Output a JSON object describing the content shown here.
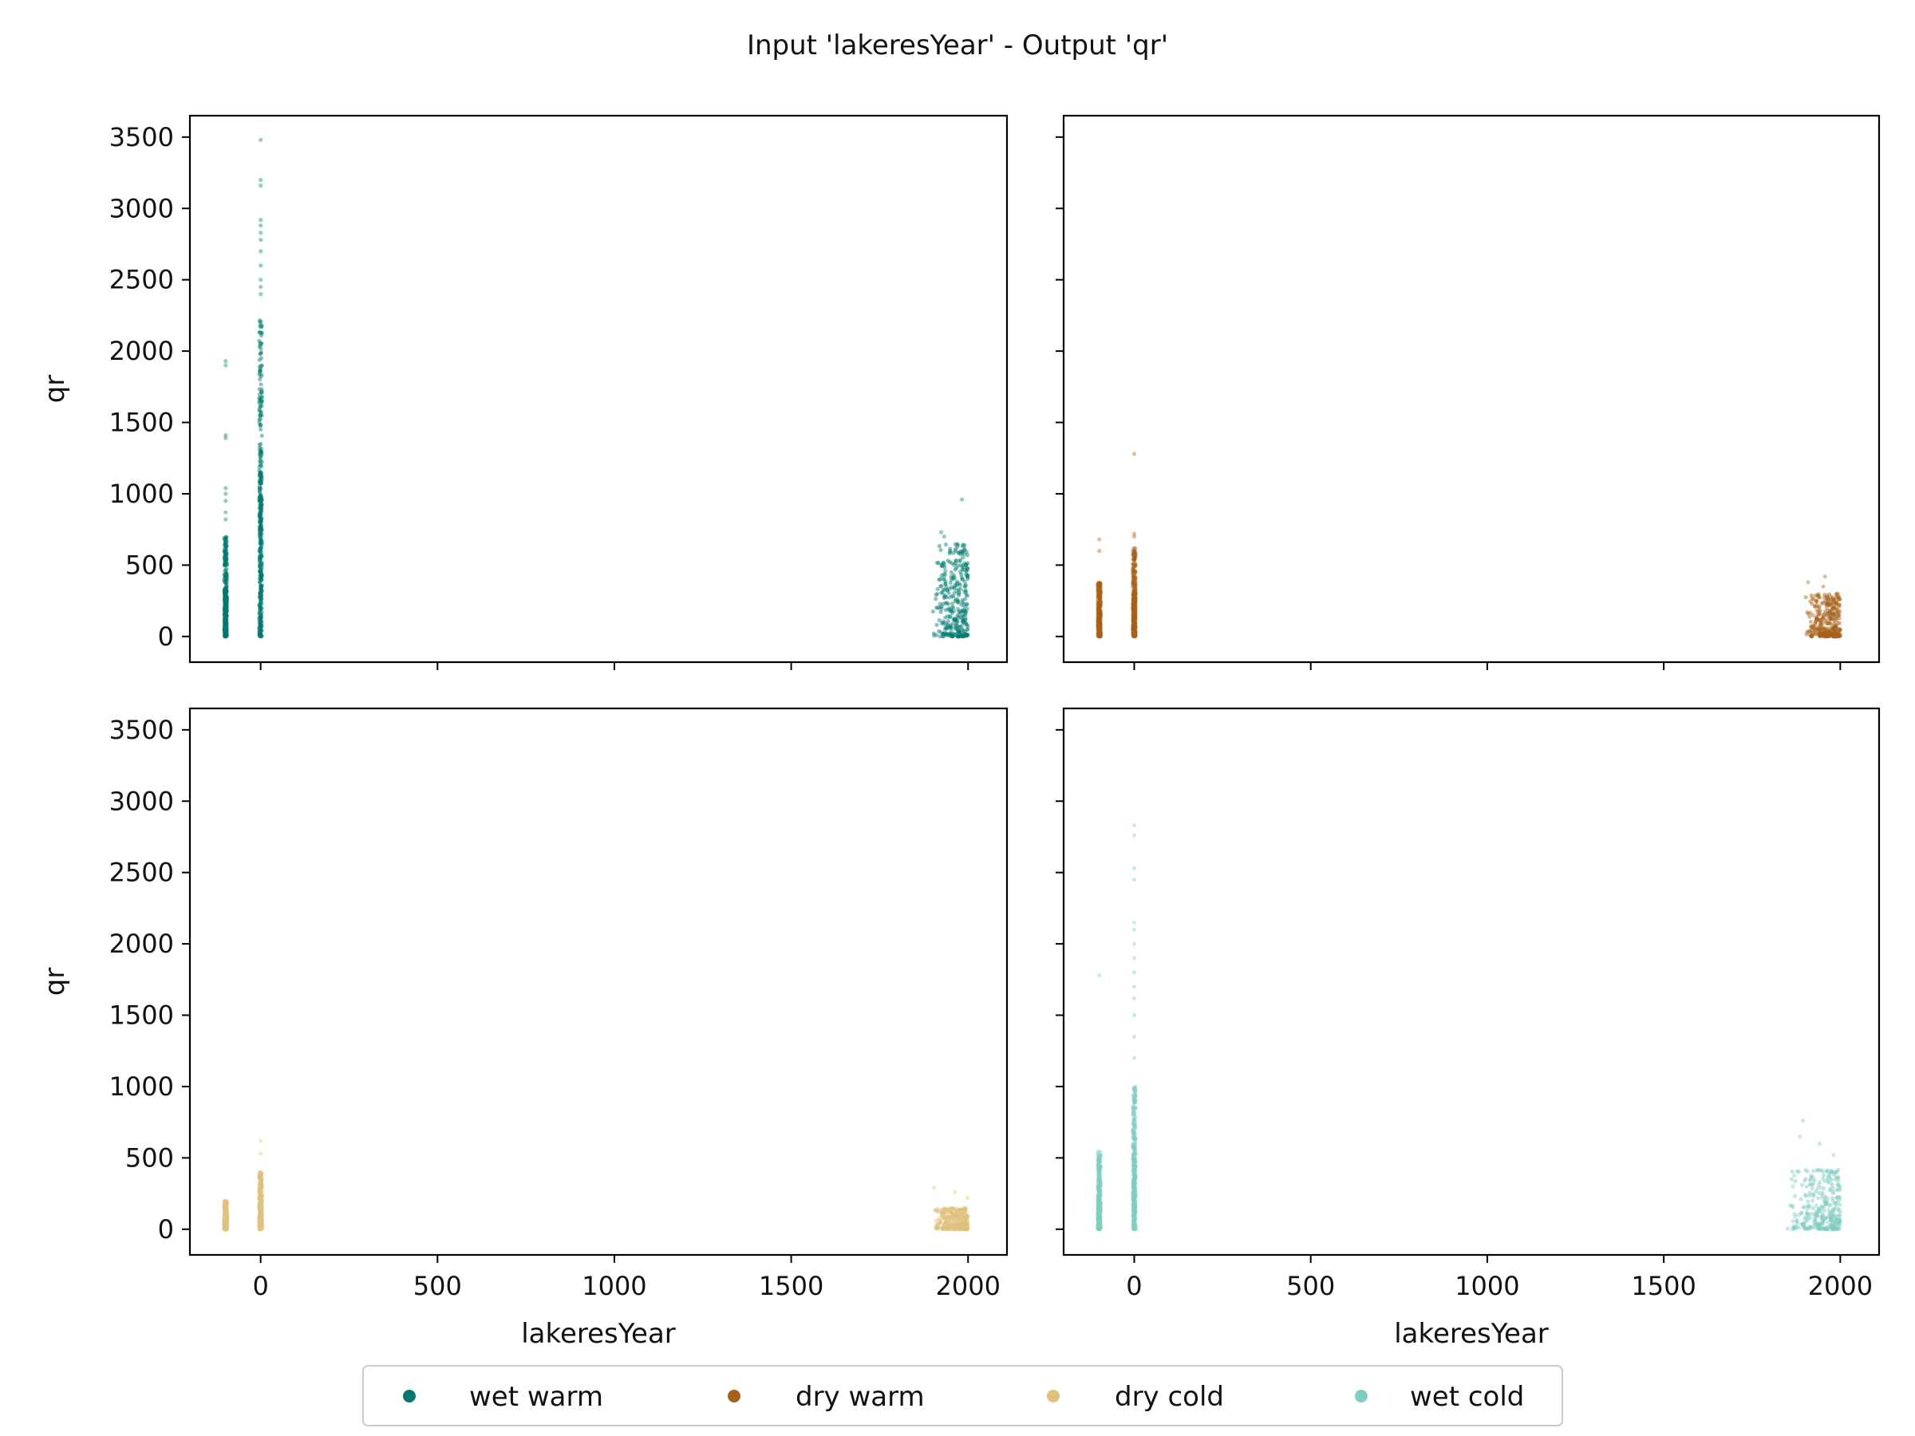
{
  "chart_data": {
    "type": "scatter",
    "title": "Input 'lakeresYear' - Output 'qr'",
    "xlabel": "lakeresYear",
    "ylabel": "qr",
    "xlim": [
      -200,
      2110
    ],
    "ylim": [
      -180,
      3650
    ],
    "xticks": [
      0,
      500,
      1000,
      1500,
      2000
    ],
    "yticks": [
      0,
      500,
      1000,
      1500,
      2000,
      2500,
      3000,
      3500
    ],
    "sharex": true,
    "sharey": true,
    "grid": false,
    "legend": {
      "position": "bottom-center",
      "entries": [
        "wet warm",
        "dry warm",
        "dry cold",
        "wet cold"
      ]
    },
    "series": [
      {
        "name": "wet warm",
        "color": "#01796f",
        "panel": "top-left",
        "clusters": [
          {
            "x": -99,
            "q_min": 0,
            "q_dense_max": 700,
            "outliers": [
              820,
              870,
              950,
              1000,
              1040,
              1390,
              1410,
              1900,
              1930
            ]
          },
          {
            "x": 0,
            "q_min": 0,
            "q_dense_max": 2300,
            "outliers": [
              2400,
              2450,
              2500,
              2600,
              2700,
              2780,
              2830,
              2880,
              2920,
              3160,
              3200,
              3480
            ]
          },
          {
            "x_min": 1900,
            "x_max": 2000,
            "q_min": 0,
            "q_dense_max": 650,
            "outliers": [
              700,
              730,
              960
            ]
          }
        ]
      },
      {
        "name": "dry warm",
        "color": "#a6611a",
        "panel": "top-right",
        "clusters": [
          {
            "x": -99,
            "q_min": 0,
            "q_dense_max": 380,
            "outliers": [
              600,
              680
            ]
          },
          {
            "x": 0,
            "q_min": 0,
            "q_dense_max": 620,
            "outliers": [
              700,
              720,
              1280
            ]
          },
          {
            "x_min": 1900,
            "x_max": 2000,
            "q_min": 0,
            "q_dense_max": 300,
            "outliers": [
              350,
              380,
              420
            ]
          }
        ]
      },
      {
        "name": "dry cold",
        "color": "#dfc27d",
        "panel": "bottom-left",
        "clusters": [
          {
            "x": -99,
            "q_min": 0,
            "q_dense_max": 200,
            "outliers": []
          },
          {
            "x": 0,
            "q_min": 0,
            "q_dense_max": 400,
            "outliers": [
              530,
              620
            ]
          },
          {
            "x_min": 1900,
            "x_max": 2000,
            "q_min": 0,
            "q_dense_max": 150,
            "outliers": [
              220,
              260,
              290
            ]
          }
        ]
      },
      {
        "name": "wet cold",
        "color": "#80cdc1",
        "panel": "bottom-right",
        "clusters": [
          {
            "x": -99,
            "q_min": 0,
            "q_dense_max": 550,
            "outliers": [
              1780
            ]
          },
          {
            "x": 0,
            "q_min": 0,
            "q_dense_max": 1000,
            "outliers": [
              1200,
              1350,
              1500,
              1620,
              1700,
              1800,
              1900,
              2000,
              2100,
              2150,
              2450,
              2530,
              2760,
              2830
            ]
          },
          {
            "x_min": 1850,
            "x_max": 2000,
            "q_min": 0,
            "q_dense_max": 420,
            "outliers": [
              520,
              600,
              650,
              760
            ]
          }
        ]
      }
    ]
  }
}
